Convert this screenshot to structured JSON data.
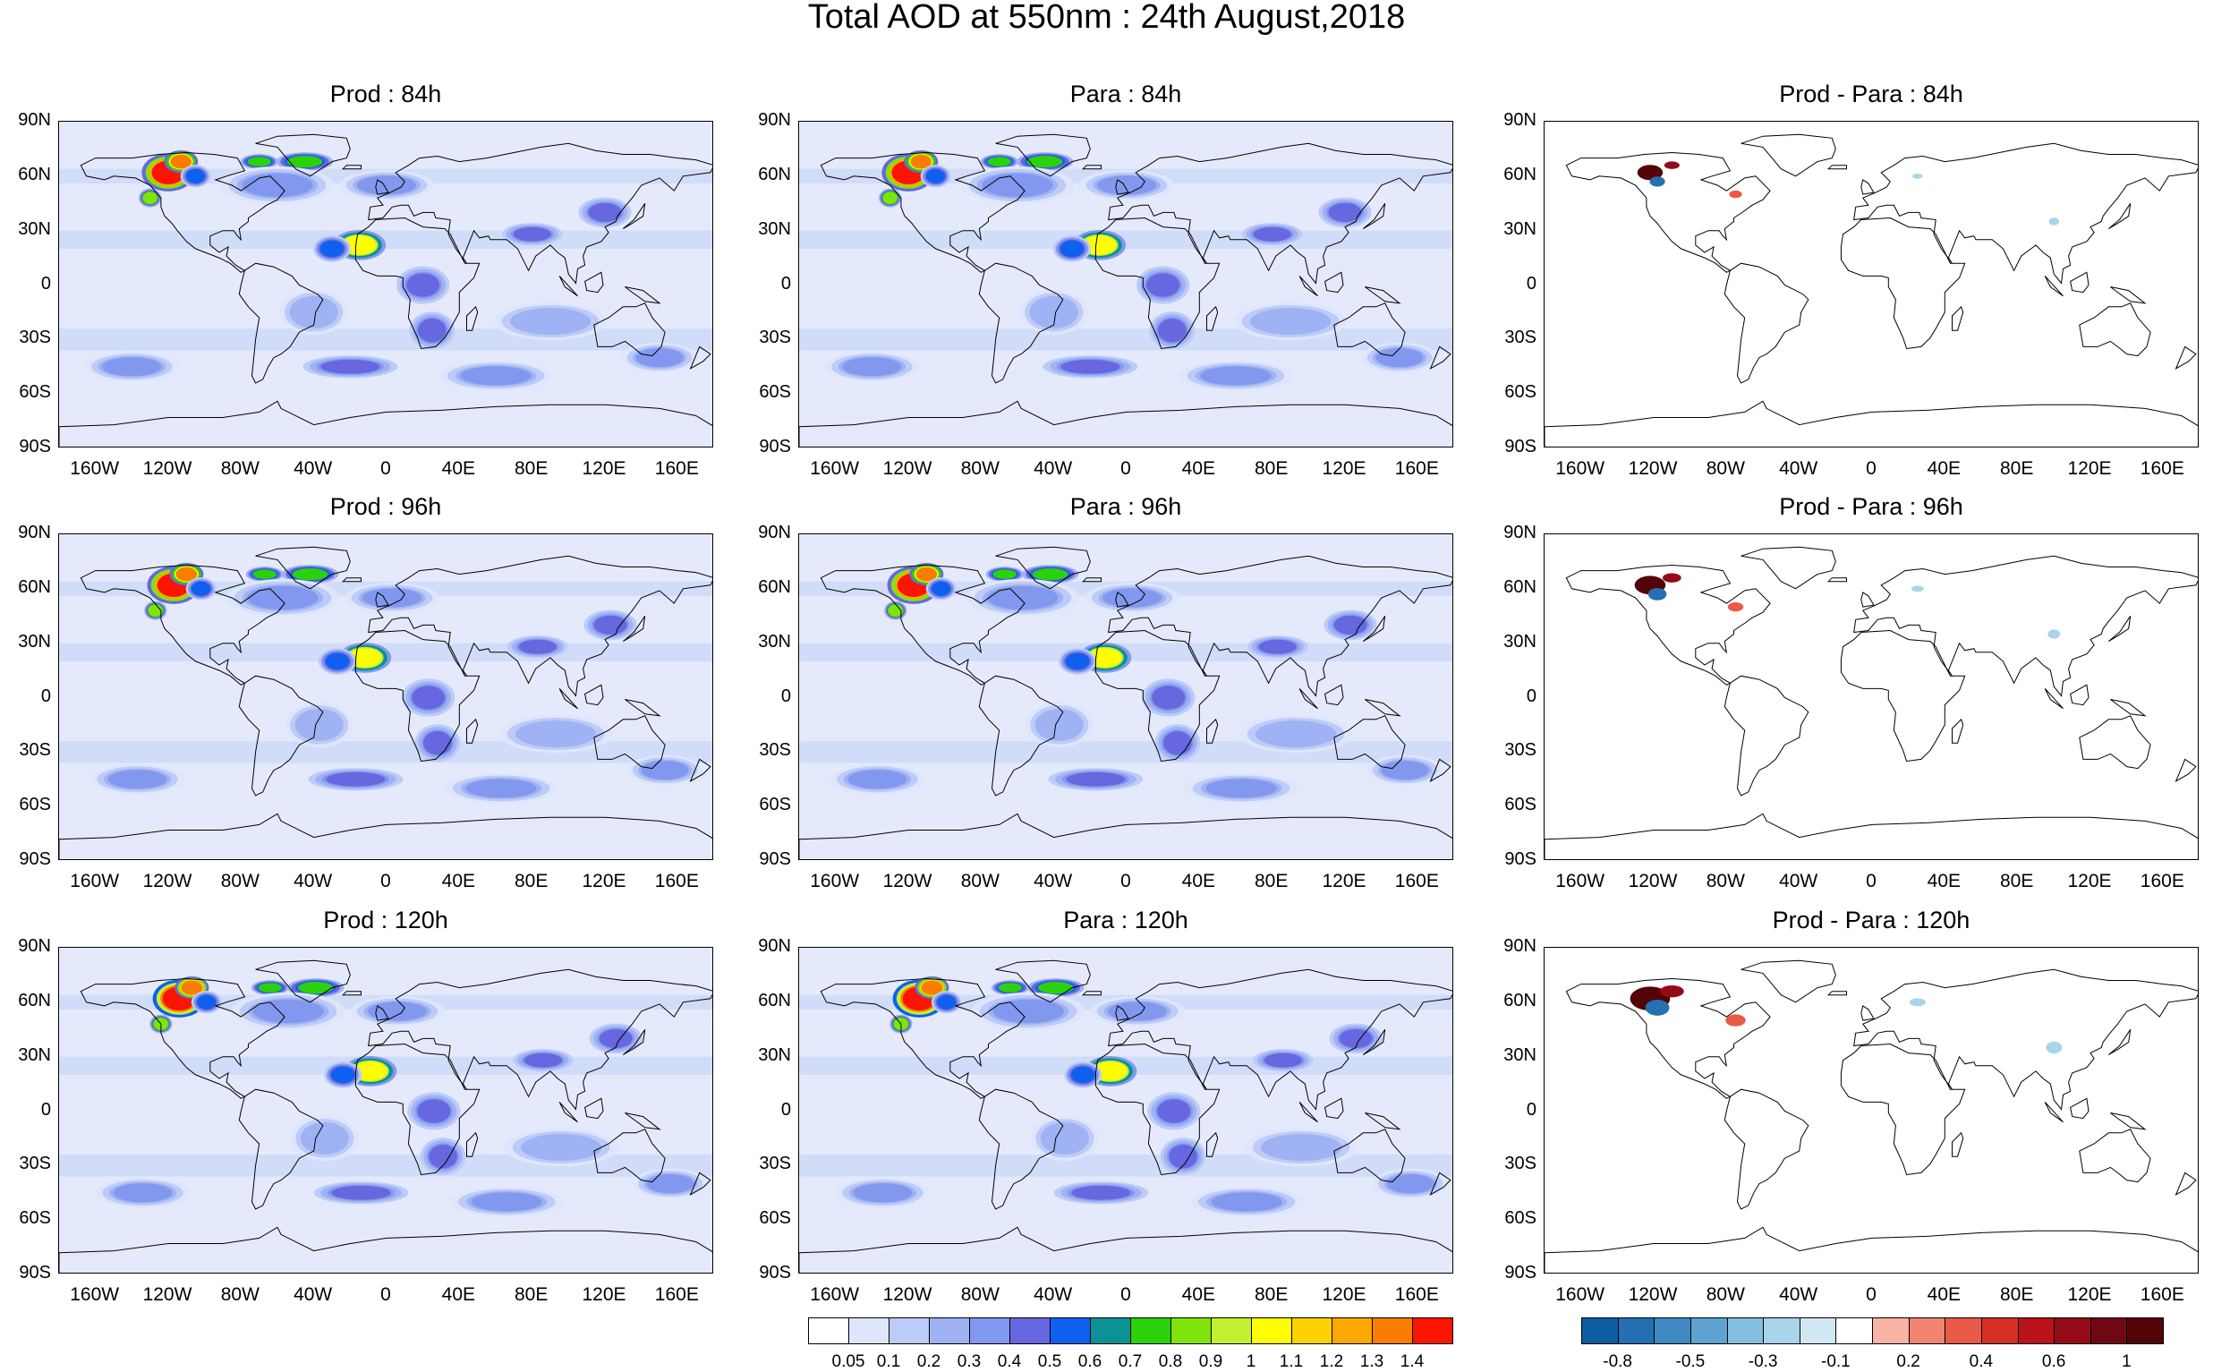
{
  "title": "Total AOD at 550nm : 24th August,2018",
  "panels": [
    {
      "title": "Prod : 84h",
      "kind": "aod"
    },
    {
      "title": "Para : 84h",
      "kind": "aod"
    },
    {
      "title": "Prod - Para : 84h",
      "kind": "diff"
    },
    {
      "title": "Prod : 96h",
      "kind": "aod"
    },
    {
      "title": "Para : 96h",
      "kind": "aod"
    },
    {
      "title": "Prod - Para : 96h",
      "kind": "diff"
    },
    {
      "title": "Prod : 120h",
      "kind": "aod"
    },
    {
      "title": "Para : 120h",
      "kind": "aod"
    },
    {
      "title": "Prod - Para : 120h",
      "kind": "diff"
    }
  ],
  "lat_labels": [
    "90N",
    "60N",
    "30N",
    "0",
    "30S",
    "60S",
    "90S"
  ],
  "lon_labels": [
    "160W",
    "120W",
    "80W",
    "40W",
    "0",
    "40E",
    "80E",
    "120E",
    "160E"
  ],
  "aod_colorbar": {
    "labels": [
      "0.05",
      "0.1",
      "0.2",
      "0.3",
      "0.4",
      "0.5",
      "0.6",
      "0.7",
      "0.8",
      "0.9",
      "1",
      "1.1",
      "1.2",
      "1.3",
      "1.4"
    ],
    "colors": [
      "#ffffff",
      "#dfe6fb",
      "#bccbf7",
      "#9fb2f3",
      "#8298ef",
      "#6767e0",
      "#0f60ef",
      "#0c9294",
      "#2bd20c",
      "#80e40c",
      "#c4ef31",
      "#fffe00",
      "#fcd200",
      "#fba900",
      "#fb7d00",
      "#fb1400"
    ]
  },
  "diff_colorbar": {
    "labels": [
      "-0.8",
      "-0.5",
      "-0.3",
      "-0.1",
      "0.2",
      "0.4",
      "0.6",
      "1"
    ],
    "colors": [
      "#0e5da1",
      "#256fb3",
      "#3f8ac2",
      "#5fa3d1",
      "#84bfe0",
      "#a9d4ea",
      "#d1e8f4",
      "#ffffff",
      "#f8b2a6",
      "#f28472",
      "#ea5a48",
      "#d63026",
      "#b91219",
      "#950a19",
      "#6f0813",
      "#520406"
    ]
  }
}
